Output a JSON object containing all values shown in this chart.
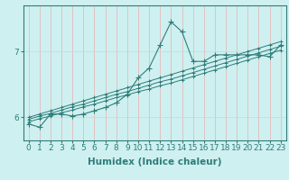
{
  "xlabel": "Humidex (Indice chaleur)",
  "background_color": "#cff0f0",
  "line_color": "#2e7d7a",
  "grid_color_v": "#e8b0b0",
  "grid_color_h": "#b8dede",
  "x_values": [
    0,
    1,
    2,
    3,
    4,
    5,
    6,
    7,
    8,
    9,
    10,
    11,
    12,
    13,
    14,
    15,
    16,
    17,
    18,
    19,
    20,
    21,
    22,
    23
  ],
  "y_main": [
    5.9,
    5.85,
    6.05,
    6.05,
    6.02,
    6.05,
    6.1,
    6.15,
    6.22,
    6.35,
    6.6,
    6.75,
    7.1,
    7.45,
    7.3,
    6.85,
    6.85,
    6.95,
    6.95,
    6.95,
    6.95,
    6.95,
    6.92,
    7.1
  ],
  "y_smooth1": [
    5.93,
    5.98,
    6.02,
    6.07,
    6.11,
    6.16,
    6.2,
    6.25,
    6.3,
    6.34,
    6.39,
    6.43,
    6.48,
    6.52,
    6.57,
    6.62,
    6.67,
    6.72,
    6.77,
    6.82,
    6.87,
    6.92,
    6.97,
    7.02
  ],
  "y_smooth2": [
    5.97,
    6.02,
    6.06,
    6.11,
    6.16,
    6.2,
    6.25,
    6.3,
    6.35,
    6.39,
    6.44,
    6.49,
    6.54,
    6.58,
    6.63,
    6.68,
    6.73,
    6.78,
    6.83,
    6.88,
    6.93,
    6.98,
    7.03,
    7.08
  ],
  "y_smooth3": [
    6.0,
    6.05,
    6.1,
    6.15,
    6.2,
    6.25,
    6.3,
    6.35,
    6.4,
    6.45,
    6.5,
    6.55,
    6.6,
    6.65,
    6.7,
    6.75,
    6.8,
    6.85,
    6.9,
    6.95,
    7.0,
    7.05,
    7.1,
    7.15
  ],
  "yticks": [
    6,
    7
  ],
  "ylim": [
    5.65,
    7.7
  ],
  "xlim": [
    -0.5,
    23.5
  ],
  "tick_fontsize": 6.5,
  "label_fontsize": 7.5
}
